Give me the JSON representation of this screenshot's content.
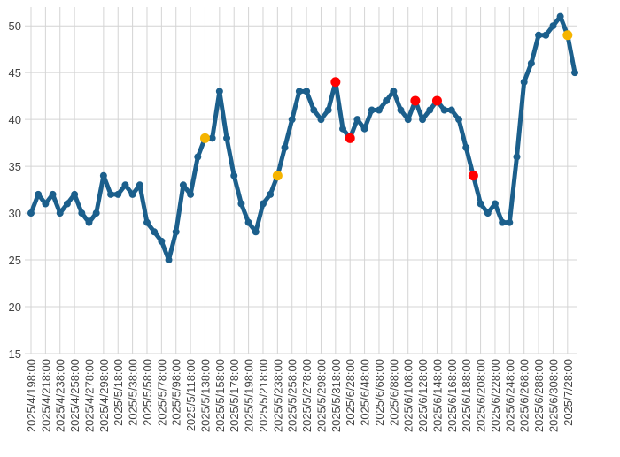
{
  "chart_data": {
    "type": "line",
    "categories": [
      "2025/4/198:00",
      null,
      "2025/4/218:00",
      null,
      "2025/4/238:00",
      null,
      "2025/4/258:00",
      null,
      "2025/4/278:00",
      null,
      "2025/4/298:00",
      null,
      "2025/5/18:00",
      null,
      "2025/5/38:00",
      null,
      "2025/5/58:00",
      null,
      "2025/5/78:00",
      null,
      "2025/5/98:00",
      null,
      "2025/5/118:00",
      null,
      "2025/5/138:00",
      null,
      "2025/5/158:00",
      null,
      "2025/5/178:00",
      null,
      "2025/5/198:00",
      null,
      "2025/5/218:00",
      null,
      "2025/5/238:00",
      null,
      "2025/5/258:00",
      null,
      "2025/5/278:00",
      null,
      "2025/5/298:00",
      null,
      "2025/5/318:00",
      null,
      "2025/6/28:00",
      null,
      "2025/6/48:00",
      null,
      "2025/6/68:00",
      null,
      "2025/6/88:00",
      null,
      "2025/6/108:00",
      null,
      "2025/6/128:00",
      null,
      "2025/6/148:00",
      null,
      "2025/6/168:00",
      null,
      "2025/6/188:00",
      null,
      "2025/6/208:00",
      null,
      "2025/6/228:00",
      null,
      "2025/6/248:00",
      null,
      "2025/6/268:00",
      null,
      "2025/6/288:00",
      null,
      "2025/6/308:00",
      null,
      "2025/7/28:00",
      null
    ],
    "series": [
      {
        "color": "#1b5f8c",
        "style": "line",
        "values": [
          30,
          32,
          31,
          32,
          30,
          31,
          32,
          30,
          29,
          30,
          34,
          32,
          32,
          33,
          32,
          33,
          29,
          28,
          27,
          25,
          28,
          33,
          32,
          36,
          38,
          38,
          43,
          38,
          34,
          31,
          29,
          28,
          31,
          32,
          34,
          37,
          40,
          43,
          43,
          41,
          40,
          41,
          44,
          39,
          38,
          40,
          39,
          41,
          41,
          42,
          43,
          41,
          40,
          42,
          40,
          41,
          42,
          41,
          41,
          40,
          37,
          34,
          31,
          30,
          31,
          29,
          29,
          36,
          44,
          46,
          49,
          49,
          50,
          51,
          49,
          45
        ]
      },
      {
        "color": "#f5b400",
        "style": "markers",
        "values": [
          null,
          null,
          null,
          null,
          null,
          null,
          null,
          null,
          null,
          null,
          null,
          null,
          null,
          null,
          null,
          null,
          null,
          null,
          null,
          null,
          null,
          null,
          null,
          null,
          38,
          null,
          null,
          null,
          null,
          null,
          null,
          null,
          null,
          null,
          34,
          null,
          null,
          null,
          null,
          null,
          null,
          null,
          null,
          null,
          null,
          null,
          null,
          null,
          null,
          null,
          null,
          null,
          null,
          null,
          null,
          null,
          null,
          null,
          null,
          null,
          null,
          null,
          null,
          null,
          null,
          null,
          null,
          null,
          null,
          null,
          null,
          null,
          null,
          null,
          49,
          null
        ]
      },
      {
        "color": "#ff0000",
        "style": "markers",
        "values": [
          null,
          null,
          null,
          null,
          null,
          null,
          null,
          null,
          null,
          null,
          null,
          null,
          null,
          null,
          null,
          null,
          null,
          null,
          null,
          null,
          null,
          null,
          null,
          null,
          null,
          null,
          null,
          null,
          null,
          null,
          null,
          null,
          null,
          null,
          null,
          null,
          null,
          null,
          null,
          null,
          null,
          null,
          44,
          null,
          38,
          null,
          null,
          null,
          null,
          null,
          null,
          null,
          null,
          42,
          null,
          null,
          42,
          null,
          null,
          null,
          null,
          34,
          null,
          null,
          null,
          null,
          null,
          null,
          null,
          null,
          null,
          null,
          null,
          null,
          null,
          null
        ]
      }
    ],
    "ylim": [
      15,
      52
    ],
    "yticks": [
      15,
      20,
      25,
      30,
      35,
      40,
      45,
      50
    ],
    "grid": true
  }
}
